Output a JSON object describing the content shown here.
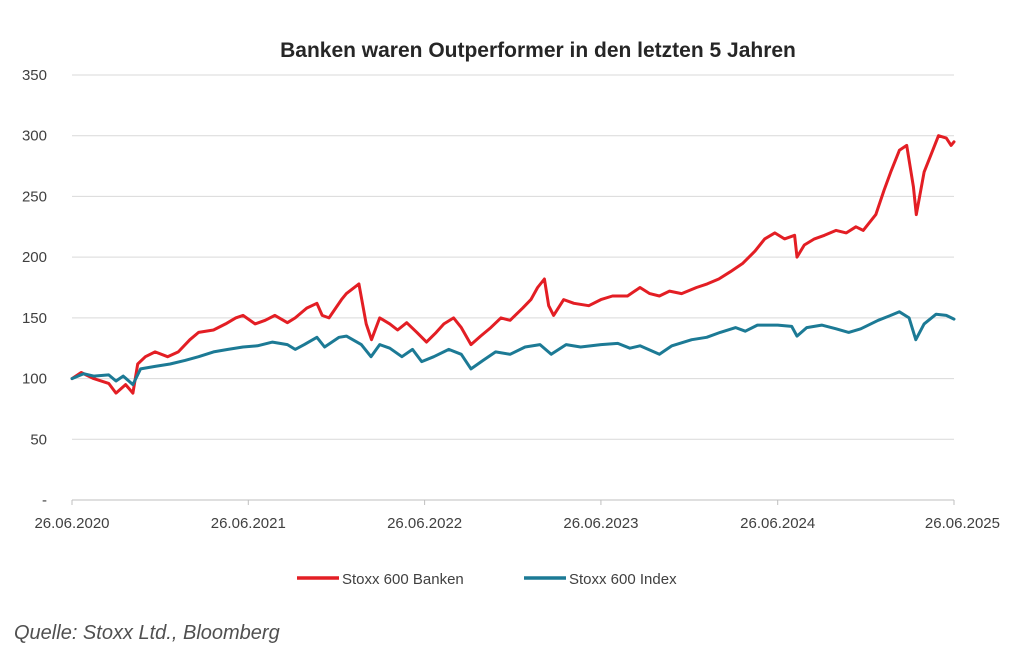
{
  "chart_data": {
    "type": "line",
    "title": "Banken waren Outperformer  in den letzten 5 Jahren",
    "xlabel": "",
    "ylabel": "",
    "ylim": [
      0,
      350
    ],
    "yticks": [
      {
        "value": 0,
        "label": "-"
      },
      {
        "value": 50,
        "label": "50"
      },
      {
        "value": 100,
        "label": "100"
      },
      {
        "value": 150,
        "label": "150"
      },
      {
        "value": 200,
        "label": "200"
      },
      {
        "value": 250,
        "label": "250"
      },
      {
        "value": 300,
        "label": "300"
      },
      {
        "value": 350,
        "label": "350"
      }
    ],
    "xlim": [
      "2020-06-26",
      "2025-06-26"
    ],
    "xticks": [
      {
        "date": "2020-06-26",
        "label": "26.06.2020"
      },
      {
        "date": "2021-06-26",
        "label": "26.06.2021"
      },
      {
        "date": "2022-06-26",
        "label": "26.06.2022"
      },
      {
        "date": "2023-06-26",
        "label": "26.06.2023"
      },
      {
        "date": "2024-06-26",
        "label": "26.06.2024"
      },
      {
        "date": "2025-06-26",
        "label": "26.06.2025"
      }
    ],
    "grid": true,
    "legend": "bottom",
    "series": [
      {
        "name": "Stoxx 600 Banken",
        "color": "#e31e24",
        "points": [
          [
            "2020-06-26",
            100
          ],
          [
            "2020-07-15",
            105
          ],
          [
            "2020-08-10",
            100
          ],
          [
            "2020-09-10",
            96
          ],
          [
            "2020-09-25",
            88
          ],
          [
            "2020-10-15",
            95
          ],
          [
            "2020-10-30",
            88
          ],
          [
            "2020-11-09",
            112
          ],
          [
            "2020-11-25",
            118
          ],
          [
            "2020-12-15",
            122
          ],
          [
            "2021-01-10",
            118
          ],
          [
            "2021-02-01",
            122
          ],
          [
            "2021-02-25",
            132
          ],
          [
            "2021-03-15",
            138
          ],
          [
            "2021-04-15",
            140
          ],
          [
            "2021-05-10",
            145
          ],
          [
            "2021-05-31",
            150
          ],
          [
            "2021-06-15",
            152
          ],
          [
            "2021-07-10",
            145
          ],
          [
            "2021-07-31",
            148
          ],
          [
            "2021-08-20",
            152
          ],
          [
            "2021-09-15",
            146
          ],
          [
            "2021-10-01",
            150
          ],
          [
            "2021-10-25",
            158
          ],
          [
            "2021-11-15",
            162
          ],
          [
            "2021-11-26",
            152
          ],
          [
            "2021-12-10",
            150
          ],
          [
            "2022-01-05",
            165
          ],
          [
            "2022-01-15",
            170
          ],
          [
            "2022-02-10",
            178
          ],
          [
            "2022-02-25",
            145
          ],
          [
            "2022-03-08",
            132
          ],
          [
            "2022-03-25",
            150
          ],
          [
            "2022-04-15",
            145
          ],
          [
            "2022-05-01",
            140
          ],
          [
            "2022-05-20",
            146
          ],
          [
            "2022-06-10",
            138
          ],
          [
            "2022-06-30",
            130
          ],
          [
            "2022-07-20",
            138
          ],
          [
            "2022-08-05",
            145
          ],
          [
            "2022-08-25",
            150
          ],
          [
            "2022-09-10",
            142
          ],
          [
            "2022-09-30",
            128
          ],
          [
            "2022-10-20",
            135
          ],
          [
            "2022-11-10",
            142
          ],
          [
            "2022-12-01",
            150
          ],
          [
            "2022-12-20",
            148
          ],
          [
            "2023-01-15",
            158
          ],
          [
            "2023-02-01",
            165
          ],
          [
            "2023-02-15",
            175
          ],
          [
            "2023-03-01",
            182
          ],
          [
            "2023-03-10",
            160
          ],
          [
            "2023-03-20",
            152
          ],
          [
            "2023-04-10",
            165
          ],
          [
            "2023-05-01",
            162
          ],
          [
            "2023-06-01",
            160
          ],
          [
            "2023-06-26",
            165
          ],
          [
            "2023-07-20",
            168
          ],
          [
            "2023-08-20",
            168
          ],
          [
            "2023-09-15",
            175
          ],
          [
            "2023-10-05",
            170
          ],
          [
            "2023-10-25",
            168
          ],
          [
            "2023-11-15",
            172
          ],
          [
            "2023-12-10",
            170
          ],
          [
            "2024-01-10",
            175
          ],
          [
            "2024-02-01",
            178
          ],
          [
            "2024-02-25",
            182
          ],
          [
            "2024-03-20",
            188
          ],
          [
            "2024-04-15",
            195
          ],
          [
            "2024-05-10",
            205
          ],
          [
            "2024-05-30",
            215
          ],
          [
            "2024-06-20",
            220
          ],
          [
            "2024-07-10",
            215
          ],
          [
            "2024-07-31",
            218
          ],
          [
            "2024-08-05",
            200
          ],
          [
            "2024-08-20",
            210
          ],
          [
            "2024-09-10",
            215
          ],
          [
            "2024-10-01",
            218
          ],
          [
            "2024-10-25",
            222
          ],
          [
            "2024-11-15",
            220
          ],
          [
            "2024-12-05",
            225
          ],
          [
            "2024-12-20",
            222
          ],
          [
            "2025-01-15",
            235
          ],
          [
            "2025-02-01",
            255
          ],
          [
            "2025-02-15",
            270
          ],
          [
            "2025-03-05",
            288
          ],
          [
            "2025-03-20",
            292
          ],
          [
            "2025-04-03",
            258
          ],
          [
            "2025-04-09",
            235
          ],
          [
            "2025-04-25",
            270
          ],
          [
            "2025-05-10",
            285
          ],
          [
            "2025-05-25",
            300
          ],
          [
            "2025-06-10",
            298
          ],
          [
            "2025-06-20",
            292
          ],
          [
            "2025-06-26",
            295
          ]
        ]
      },
      {
        "name": "Stoxx 600 Index",
        "color": "#1c7a95",
        "points": [
          [
            "2020-06-26",
            100
          ],
          [
            "2020-07-20",
            104
          ],
          [
            "2020-08-10",
            102
          ],
          [
            "2020-09-10",
            103
          ],
          [
            "2020-09-25",
            98
          ],
          [
            "2020-10-10",
            102
          ],
          [
            "2020-10-30",
            95
          ],
          [
            "2020-11-15",
            108
          ],
          [
            "2020-12-15",
            110
          ],
          [
            "2021-01-15",
            112
          ],
          [
            "2021-02-15",
            115
          ],
          [
            "2021-03-15",
            118
          ],
          [
            "2021-04-15",
            122
          ],
          [
            "2021-05-15",
            124
          ],
          [
            "2021-06-15",
            126
          ],
          [
            "2021-07-15",
            127
          ],
          [
            "2021-08-15",
            130
          ],
          [
            "2021-09-15",
            128
          ],
          [
            "2021-10-01",
            124
          ],
          [
            "2021-10-20",
            128
          ],
          [
            "2021-11-15",
            134
          ],
          [
            "2021-12-01",
            126
          ],
          [
            "2021-12-31",
            134
          ],
          [
            "2022-01-15",
            135
          ],
          [
            "2022-02-15",
            128
          ],
          [
            "2022-03-07",
            118
          ],
          [
            "2022-03-25",
            128
          ],
          [
            "2022-04-15",
            125
          ],
          [
            "2022-05-10",
            118
          ],
          [
            "2022-06-01",
            124
          ],
          [
            "2022-06-20",
            114
          ],
          [
            "2022-07-15",
            118
          ],
          [
            "2022-08-15",
            124
          ],
          [
            "2022-09-10",
            120
          ],
          [
            "2022-09-30",
            108
          ],
          [
            "2022-10-25",
            115
          ],
          [
            "2022-11-20",
            122
          ],
          [
            "2022-12-20",
            120
          ],
          [
            "2023-01-20",
            126
          ],
          [
            "2023-02-20",
            128
          ],
          [
            "2023-03-15",
            120
          ],
          [
            "2023-04-15",
            128
          ],
          [
            "2023-05-15",
            126
          ],
          [
            "2023-06-26",
            128
          ],
          [
            "2023-07-31",
            129
          ],
          [
            "2023-08-25",
            125
          ],
          [
            "2023-09-15",
            127
          ],
          [
            "2023-10-25",
            120
          ],
          [
            "2023-11-20",
            127
          ],
          [
            "2023-12-31",
            132
          ],
          [
            "2024-01-31",
            134
          ],
          [
            "2024-02-28",
            138
          ],
          [
            "2024-03-31",
            142
          ],
          [
            "2024-04-20",
            139
          ],
          [
            "2024-05-15",
            144
          ],
          [
            "2024-06-26",
            144
          ],
          [
            "2024-07-25",
            143
          ],
          [
            "2024-08-05",
            135
          ],
          [
            "2024-08-25",
            142
          ],
          [
            "2024-09-25",
            144
          ],
          [
            "2024-10-25",
            141
          ],
          [
            "2024-11-20",
            138
          ],
          [
            "2024-12-15",
            141
          ],
          [
            "2025-01-20",
            148
          ],
          [
            "2025-02-15",
            152
          ],
          [
            "2025-03-05",
            155
          ],
          [
            "2025-03-25",
            150
          ],
          [
            "2025-04-08",
            132
          ],
          [
            "2025-04-25",
            145
          ],
          [
            "2025-05-20",
            153
          ],
          [
            "2025-06-10",
            152
          ],
          [
            "2025-06-26",
            149
          ]
        ]
      }
    ]
  },
  "source": "Quelle: Stoxx Ltd., Bloomberg"
}
